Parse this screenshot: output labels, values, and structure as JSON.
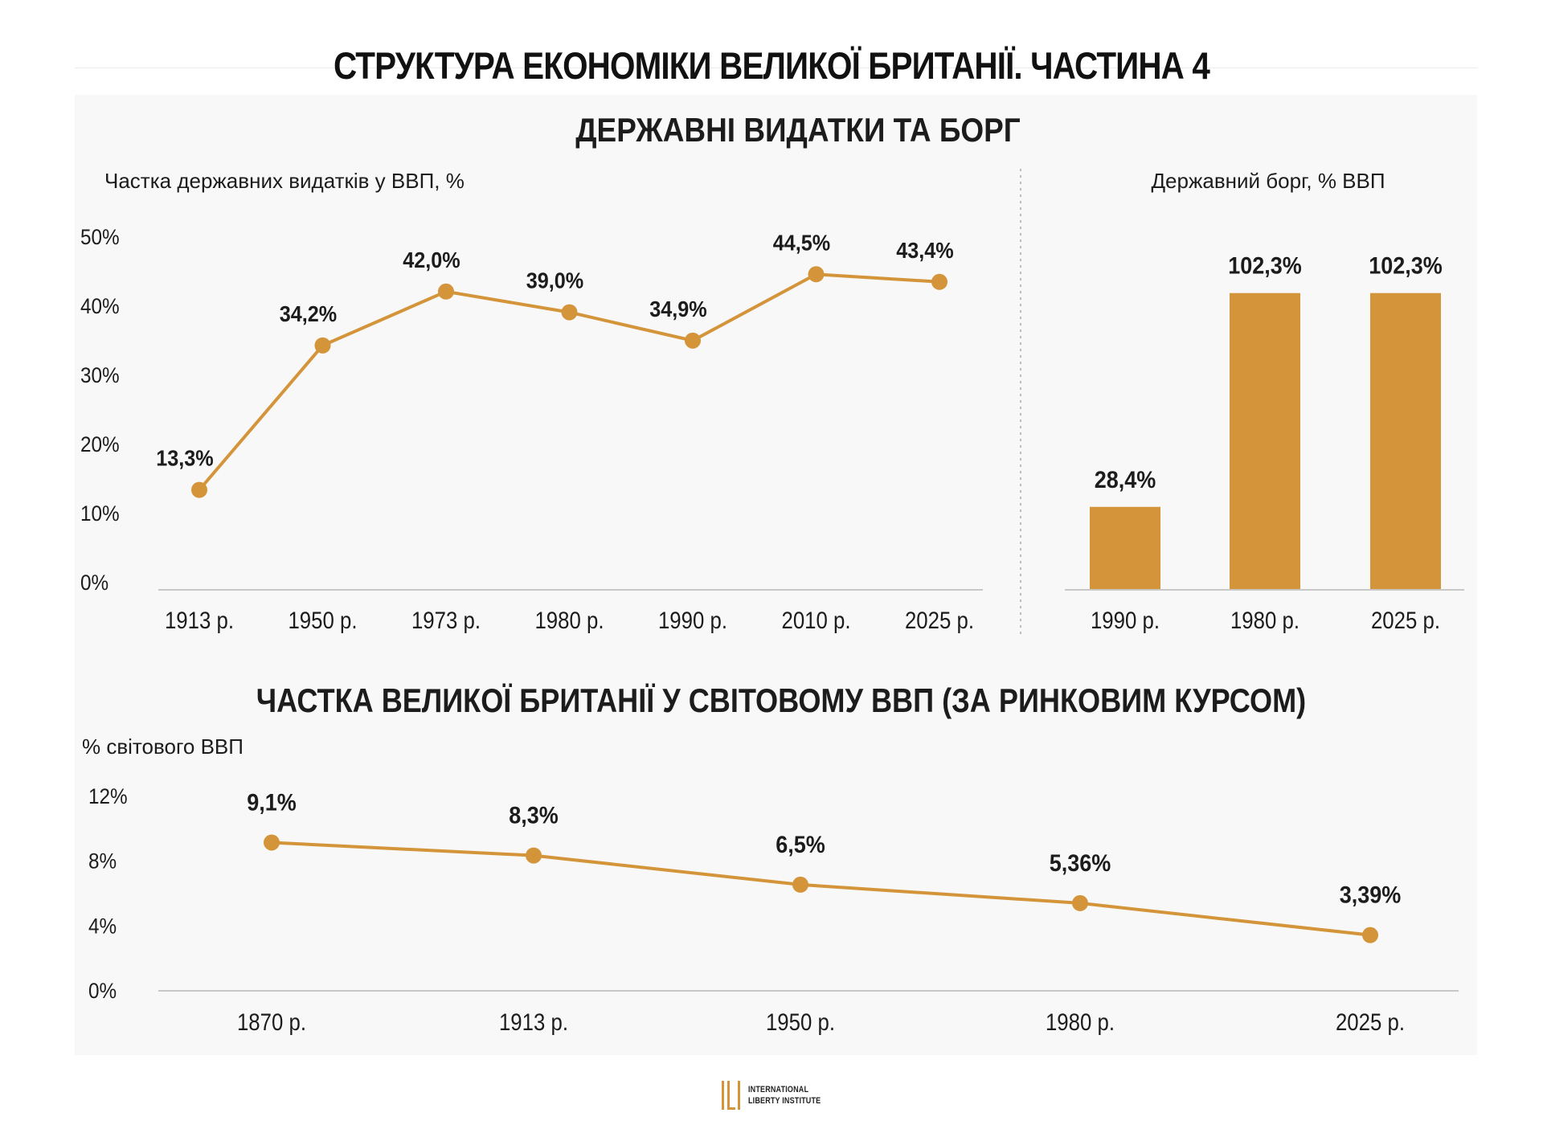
{
  "title": "СТРУКТУРА ЕКОНОМІКИ ВЕЛИКОЇ БРИТАНІЇ. ЧАСТИНА 4",
  "colors": {
    "accent": "#D4943A",
    "axis": "#c8c8c8",
    "text": "#1c1c1c",
    "background": "#f8f8f8"
  },
  "logo": {
    "line1": "INTERNATIONAL",
    "line2": "LIBERTY INSTITUTE",
    "icon": "ili-logo-icon"
  },
  "chart_data": [
    {
      "type": "line",
      "title": "ДЕРЖАВНІ ВИДАТКИ ТА БОРГ",
      "subtitle": "Частка державних видатків у ВВП, %",
      "categories": [
        "1913 р.",
        "1950 р.",
        "1973 р.",
        "1980 р.",
        "1990 р.",
        "2010 р.",
        "2025 р."
      ],
      "values": [
        13.3,
        34.2,
        42.0,
        39.0,
        34.9,
        44.5,
        43.4
      ],
      "data_labels": [
        "13,3%",
        "34,2%",
        "42,0%",
        "39,0%",
        "34,9%",
        "44,5%",
        "43,4%"
      ],
      "yticks": [
        "0%",
        "10%",
        "20%",
        "30%",
        "40%",
        "50%"
      ],
      "ylim": [
        0,
        50
      ],
      "grid": false
    },
    {
      "type": "bar",
      "subtitle": "Державний борг, % ВВП",
      "categories": [
        "1990 р.",
        "1980 р.",
        "2025 р."
      ],
      "values": [
        28.4,
        102.3,
        102.3
      ],
      "data_labels": [
        "28,4%",
        "102,3%",
        "102,3%"
      ],
      "grid": false
    },
    {
      "type": "line",
      "title": "ЧАСТКА ВЕЛИКОЇ БРИТАНІЇ У СВІТОВОМУ ВВП (ЗА РИНКОВИМ КУРСОМ)",
      "ylabel": "% світового ВВП",
      "categories": [
        "1870 р.",
        "1913 р.",
        "1950 р.",
        "1980 р.",
        "2025 р."
      ],
      "values": [
        9.1,
        8.3,
        6.5,
        5.36,
        3.39
      ],
      "data_labels": [
        "9,1%",
        "8,3%",
        "6,5%",
        "5,36%",
        "3,39%"
      ],
      "yticks": [
        "0%",
        "4%",
        "8%",
        "12%"
      ],
      "ylim": [
        0,
        12
      ],
      "grid": false
    }
  ]
}
